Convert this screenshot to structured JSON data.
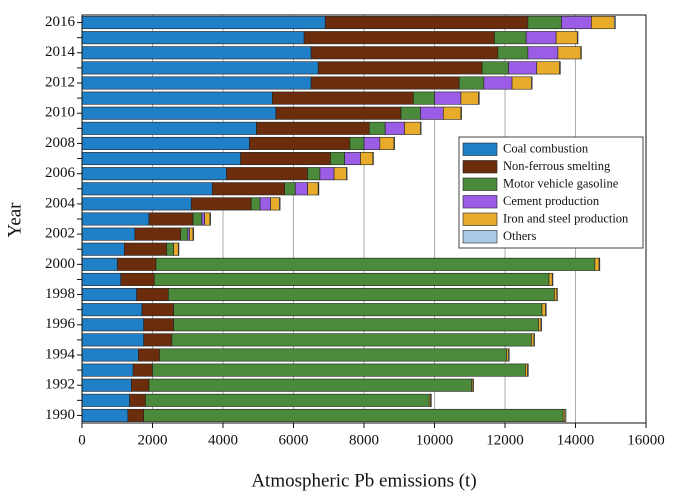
{
  "chart_data": {
    "type": "bar",
    "orientation": "horizontal",
    "stacked": true,
    "xlabel": "Atmospheric Pb emissions (t)",
    "ylabel": "Year",
    "categories": [
      "1990",
      null,
      "1992",
      null,
      "1994",
      null,
      "1996",
      null,
      "1998",
      null,
      "2000",
      null,
      "2002",
      null,
      "2004",
      null,
      "2006",
      null,
      "2008",
      null,
      "2010",
      null,
      "2012",
      null,
      "2014",
      null,
      "2016"
    ],
    "series": [
      {
        "name": "Coal combustion",
        "color": "#1f7fc7",
        "values": [
          1300,
          1350,
          1400,
          1450,
          1600,
          1750,
          1750,
          1700,
          1550,
          1100,
          1000,
          1200,
          1500,
          1900,
          3100,
          3700,
          4100,
          4500,
          4750,
          4950,
          5500,
          5400,
          6500,
          6700,
          6500,
          6300,
          6900
        ]
      },
      {
        "name": "Non-ferrous smelting",
        "color": "#6b2d0c",
        "values": [
          450,
          450,
          500,
          550,
          600,
          800,
          850,
          900,
          900,
          950,
          1100,
          1200,
          1300,
          1250,
          1700,
          2050,
          2300,
          2550,
          2850,
          3200,
          3550,
          4000,
          4200,
          4650,
          5300,
          5400,
          5750
        ]
      },
      {
        "name": "Motor vehicle gasoline",
        "color": "#4a8a3a",
        "values": [
          11900,
          8050,
          9150,
          10580,
          9850,
          10200,
          10350,
          10450,
          10950,
          11200,
          12450,
          200,
          200,
          250,
          250,
          300,
          350,
          400,
          400,
          450,
          550,
          600,
          700,
          750,
          850,
          900,
          950
        ]
      },
      {
        "name": "Cement production",
        "color": "#9b5de5",
        "values": [
          0,
          0,
          0,
          0,
          0,
          0,
          0,
          0,
          0,
          0,
          0,
          0,
          50,
          80,
          300,
          350,
          400,
          450,
          450,
          550,
          650,
          750,
          800,
          800,
          850,
          850,
          850
        ]
      },
      {
        "name": "Iron and steel production",
        "color": "#e8ac2a",
        "values": [
          50,
          40,
          40,
          60,
          50,
          70,
          70,
          100,
          70,
          90,
          120,
          130,
          100,
          150,
          250,
          300,
          350,
          350,
          400,
          450,
          500,
          500,
          550,
          650,
          650,
          600,
          650
        ]
      },
      {
        "name": "Others",
        "color": "#a9cbe8",
        "values": [
          30,
          20,
          20,
          20,
          20,
          20,
          20,
          20,
          20,
          20,
          20,
          20,
          20,
          20,
          20,
          20,
          20,
          20,
          20,
          20,
          20,
          20,
          20,
          20,
          20,
          20,
          30
        ]
      }
    ],
    "xlim": [
      0,
      16000
    ],
    "xticks": [
      0,
      2000,
      4000,
      6000,
      8000,
      10000,
      12000,
      14000,
      16000
    ],
    "grid": true,
    "legend": "right"
  }
}
